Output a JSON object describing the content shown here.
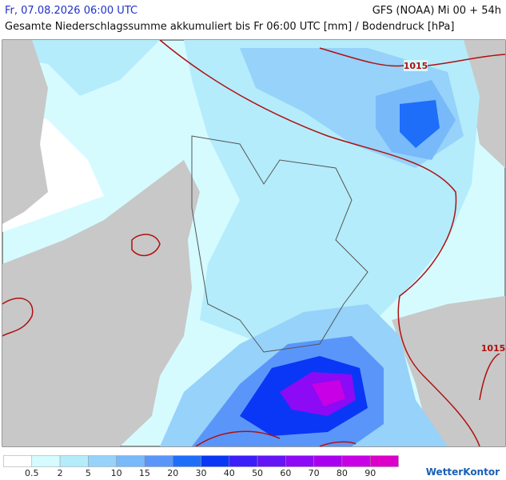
{
  "header": {
    "left": "Fr, 07.08.2026 06:00 UTC",
    "right": "GFS (NOAA) Mi 00 + 54h",
    "subtitle": "Gesamte Niederschlagssumme akkumuliert bis Fr 06:00 UTC [mm] / Bodendruck [hPa]"
  },
  "isobars": [
    {
      "label": "1015"
    },
    {
      "label": "1015"
    }
  ],
  "legend": {
    "labels": [
      "0.5",
      "2",
      "5",
      "10",
      "15",
      "20",
      "30",
      "40",
      "50",
      "60",
      "70",
      "80",
      "90"
    ],
    "colors": [
      "#ffffff",
      "#d5fbff",
      "#b4ecfb",
      "#96d2fa",
      "#78b9fa",
      "#5a96fa",
      "#1e6efa",
      "#0a37f5",
      "#3c1efa",
      "#6414f5",
      "#8c0af5",
      "#aa00f0",
      "#c800e6",
      "#dc00c8"
    ]
  },
  "brand": "WetterKontor"
}
